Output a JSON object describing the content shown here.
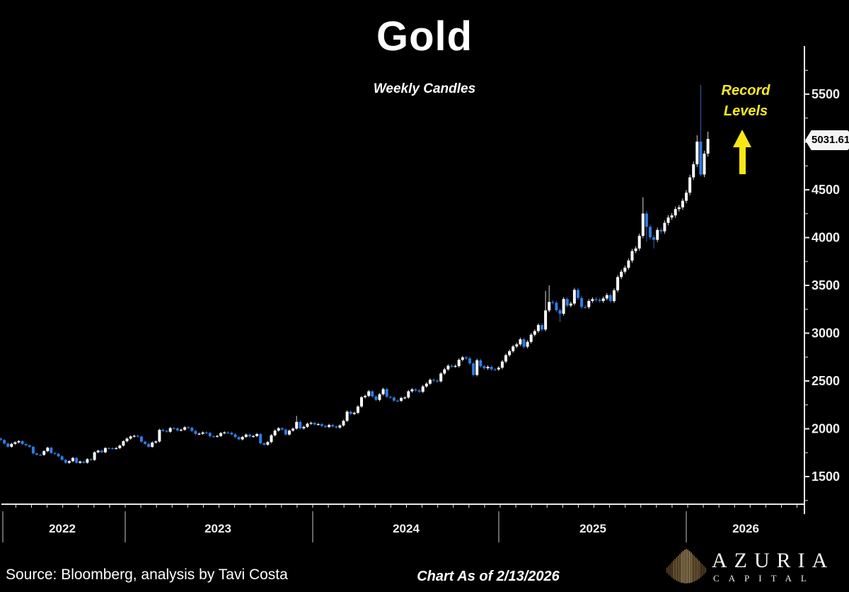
{
  "header": {
    "title": "Gold",
    "subtitle": "Weekly Candles"
  },
  "annotation": {
    "line1": "Record",
    "line2": "Levels",
    "color": "#f8e714"
  },
  "icons": {
    "record_arrow": "up-arrow",
    "logo_mark": "golden-fan-peak"
  },
  "price_tag": {
    "label": "5031.61"
  },
  "footer": {
    "source": "Source: Bloomberg, analysis by Tavi Costa",
    "as_of": "Chart As of 2/13/2026"
  },
  "logo": {
    "brand": "AZURIA",
    "brand_sub": "CAPITAL"
  },
  "chart_data": {
    "type": "candlestick",
    "interval": "weekly",
    "title": "Gold",
    "subtitle": "Weekly Candles",
    "x_range": [
      "2022-05",
      "2026-02-13"
    ],
    "ylim": [
      1211,
      6004
    ],
    "grid": "off",
    "legend": "none",
    "y_axis_side": "right",
    "y_ticks_major": [
      5500,
      5000,
      4500,
      4000,
      3500,
      3000,
      2500,
      2000,
      1500
    ],
    "y_tick_minor_step": 250,
    "y_tick_minor_range": [
      1250,
      5750
    ],
    "x_year_labels": [
      {
        "label": "2022",
        "x": 88
      },
      {
        "label": "2023",
        "x": 308
      },
      {
        "label": "2024",
        "x": 574
      },
      {
        "label": "2025",
        "x": 838
      },
      {
        "label": "2026",
        "x": 1054
      }
    ],
    "x_year_separators": [
      4,
      177,
      442,
      705,
      970
    ],
    "month_tick": {
      "anchor_x": 177,
      "step": 22.083,
      "k_min": -8,
      "k_max": 43
    },
    "last_price": 5031.61,
    "first_open": 1897,
    "default_wick_pct": 0.006,
    "weekly_closes": [
      1883,
      1846,
      1812,
      1842,
      1858,
      1871,
      1840,
      1827,
      1811,
      1742,
      1728,
      1727,
      1766,
      1802,
      1747,
      1738,
      1712,
      1675,
      1644,
      1661,
      1695,
      1644,
      1657,
      1645,
      1682,
      1674,
      1754,
      1771,
      1754,
      1798,
      1797,
      1793,
      1798,
      1824,
      1870,
      1897,
      1920,
      1926,
      1919,
      1865,
      1842,
      1811,
      1856,
      1867,
      1989,
      1978,
      1969,
      2007,
      2004,
      1983,
      1990,
      2016,
      2011,
      1977,
      1946,
      1948,
      1961,
      1957,
      1921,
      1919,
      1925,
      1955,
      1962,
      1959,
      1942,
      1913,
      1889,
      1915,
      1939,
      1918,
      1924,
      1945,
      1848,
      1833,
      1861,
      1932,
      1981,
      2006,
      1992,
      1940,
      1981,
      2002,
      2072,
      2004,
      2020,
      2053,
      2062,
      2045,
      2049,
      2029,
      2018,
      2040,
      2024,
      2013,
      2035,
      2083,
      2179,
      2156,
      2167,
      2233,
      2330,
      2344,
      2392,
      2338,
      2302,
      2361,
      2415,
      2334,
      2327,
      2294,
      2293,
      2322,
      2327,
      2392,
      2412,
      2401,
      2387,
      2443,
      2472,
      2512,
      2503,
      2497,
      2578,
      2622,
      2659,
      2654,
      2657,
      2721,
      2747,
      2736,
      2684,
      2563,
      2716,
      2654,
      2633,
      2648,
      2622,
      2621,
      2639,
      2703,
      2770,
      2812,
      2861,
      2883,
      2936,
      2858,
      2909,
      2984,
      3022,
      3085,
      3038,
      3238,
      3327,
      3319,
      3240,
      3203,
      3358,
      3289,
      3310,
      3453,
      3368,
      3274,
      3273,
      3337,
      3356,
      3350,
      3337,
      3363,
      3398,
      3336,
      3448,
      3587,
      3643,
      3685,
      3760,
      3859,
      3886,
      4018,
      4252,
      4113,
      4003,
      3977,
      4080,
      4065,
      4154,
      4210,
      4232,
      4298,
      4316,
      4385,
      4470,
      4630,
      4767,
      5004,
      4660,
      4878,
      5031.61
    ],
    "wick_overrides": {
      "82": {
        "high": 2135
      },
      "151": {
        "high": 3442
      },
      "152": {
        "high": 3500
      },
      "155": {
        "low": 3118
      },
      "178": {
        "high": 4422
      },
      "179": {
        "low": 3958
      },
      "181": {
        "low": 3887
      },
      "193": {
        "high": 5070
      },
      "194": {
        "high": 5596,
        "low": 4640
      },
      "196": {
        "high": 5108,
        "low": 4848
      }
    },
    "colors": {
      "up_body": "#ffffff",
      "up_wick": "#d8d8d8",
      "down_body": "#2e7de2",
      "down_wick": "#2f66b5",
      "axis": "#e8e8e8",
      "tick_label": "#f0f0f0",
      "separator": "#c8c8c8"
    },
    "layout": {
      "x_first_center": 1,
      "x_step": 5.1,
      "candle_width": 4,
      "y_anchor": {
        "va": 5500,
        "ya": 133,
        "vb": 1500,
        "yb": 673
      },
      "axis_x": 1137,
      "axis_y": 712,
      "y_axis_top": 65,
      "y_axis_bottom": 726,
      "y_label_x": 1147,
      "year_label_y": 752,
      "sep_y1": 722,
      "sep_y2": 766
    }
  }
}
